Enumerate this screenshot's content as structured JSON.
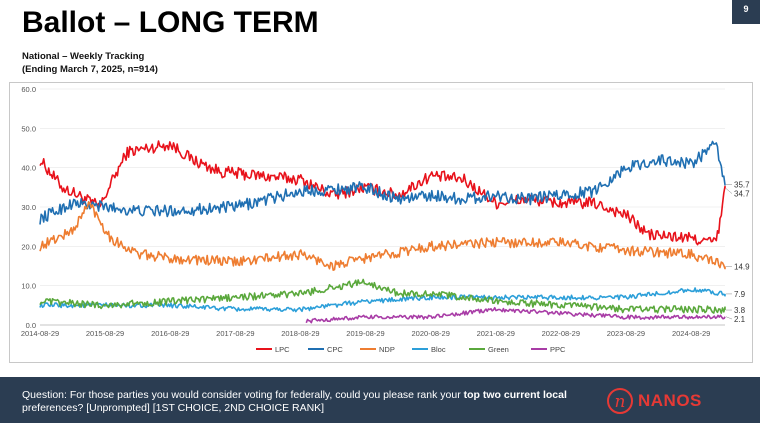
{
  "slide": {
    "title": "Ballot – LONG TERM",
    "subtitle_line1": "National – Weekly Tracking",
    "subtitle_line2": "(Ending March 7, 2025, n=914)",
    "page_number": "9"
  },
  "footer": {
    "question_part1": "Question: For those parties you would consider voting for federally, could you please rank your ",
    "question_bold": "top two current local",
    "question_part2": "preferences? [Unprompted] [1ST CHOICE, 2ND CHOICE RANK]",
    "logo_mark": "n",
    "logo_text": "NANOS"
  },
  "chart_data": {
    "type": "line",
    "x_labels": [
      "2014-08-29",
      "2015-08-29",
      "2016-08-29",
      "2017-08-29",
      "2018-08-29",
      "2019-08-29",
      "2020-08-29",
      "2021-08-29",
      "2022-08-29",
      "2023-08-29",
      "2024-08-29"
    ],
    "xlim": [
      "2014-08-29",
      "2025-03-07"
    ],
    "ylim": [
      0,
      60
    ],
    "y_ticks": [
      "0.0",
      "10.0",
      "20.0",
      "30.0",
      "40.0",
      "50.0",
      "60.0"
    ],
    "legend_position": "bottom",
    "series": [
      {
        "name": "LPC",
        "color": "#e8121b",
        "end_label": "34.7",
        "volatility": 1.5,
        "points": [
          [
            "2014-08-29",
            42
          ],
          [
            "2015-01-01",
            35
          ],
          [
            "2015-04-01",
            33
          ],
          [
            "2015-08-01",
            30
          ],
          [
            "2015-10-01",
            36
          ],
          [
            "2016-01-01",
            44
          ],
          [
            "2016-08-29",
            46
          ],
          [
            "2017-01-01",
            42
          ],
          [
            "2017-06-01",
            39
          ],
          [
            "2018-01-01",
            38
          ],
          [
            "2018-08-29",
            37
          ],
          [
            "2019-03-01",
            33
          ],
          [
            "2019-08-29",
            35
          ],
          [
            "2020-03-01",
            33
          ],
          [
            "2020-08-29",
            38
          ],
          [
            "2021-03-01",
            37
          ],
          [
            "2021-08-29",
            31
          ],
          [
            "2022-03-01",
            32
          ],
          [
            "2022-08-29",
            31
          ],
          [
            "2023-03-01",
            31
          ],
          [
            "2023-08-29",
            28
          ],
          [
            "2024-01-01",
            23
          ],
          [
            "2024-08-29",
            22
          ],
          [
            "2025-01-15",
            21
          ],
          [
            "2025-02-15",
            28
          ],
          [
            "2025-03-07",
            34.7
          ]
        ]
      },
      {
        "name": "CPC",
        "color": "#1f6fb2",
        "end_label": "35.7",
        "volatility": 1.5,
        "points": [
          [
            "2014-08-29",
            27
          ],
          [
            "2015-03-01",
            31
          ],
          [
            "2015-08-29",
            30
          ],
          [
            "2016-03-01",
            29
          ],
          [
            "2016-08-29",
            29
          ],
          [
            "2017-08-29",
            30
          ],
          [
            "2018-08-29",
            34
          ],
          [
            "2019-08-29",
            35
          ],
          [
            "2020-03-01",
            32
          ],
          [
            "2020-08-29",
            33
          ],
          [
            "2021-03-01",
            32
          ],
          [
            "2021-08-29",
            33
          ],
          [
            "2022-03-01",
            32
          ],
          [
            "2022-08-29",
            33
          ],
          [
            "2023-03-01",
            34
          ],
          [
            "2023-08-29",
            40
          ],
          [
            "2024-03-01",
            42
          ],
          [
            "2024-08-29",
            41
          ],
          [
            "2025-01-15",
            46
          ],
          [
            "2025-03-07",
            35.7
          ]
        ]
      },
      {
        "name": "NDP",
        "color": "#ee7d31",
        "end_label": "14.9",
        "volatility": 1.3,
        "points": [
          [
            "2014-08-29",
            20
          ],
          [
            "2015-03-01",
            24
          ],
          [
            "2015-06-01",
            31
          ],
          [
            "2015-10-01",
            22
          ],
          [
            "2016-03-01",
            18
          ],
          [
            "2016-08-29",
            17
          ],
          [
            "2017-08-29",
            16
          ],
          [
            "2018-08-29",
            18
          ],
          [
            "2019-03-01",
            15
          ],
          [
            "2019-08-29",
            17
          ],
          [
            "2020-08-29",
            20
          ],
          [
            "2021-08-29",
            21
          ],
          [
            "2022-08-29",
            21
          ],
          [
            "2023-08-29",
            19
          ],
          [
            "2024-08-29",
            18
          ],
          [
            "2025-03-07",
            14.9
          ]
        ]
      },
      {
        "name": "Bloc",
        "color": "#2c9fd9",
        "end_label": "7.9",
        "volatility": 0.6,
        "points": [
          [
            "2014-08-29",
            5
          ],
          [
            "2015-08-29",
            5
          ],
          [
            "2016-08-29",
            5
          ],
          [
            "2017-08-29",
            4
          ],
          [
            "2018-08-29",
            4
          ],
          [
            "2019-08-29",
            6
          ],
          [
            "2020-08-29",
            7
          ],
          [
            "2021-08-29",
            7
          ],
          [
            "2022-08-29",
            7
          ],
          [
            "2023-08-29",
            7
          ],
          [
            "2024-08-29",
            9
          ],
          [
            "2025-03-07",
            7.9
          ]
        ]
      },
      {
        "name": "Green",
        "color": "#5aa83c",
        "end_label": "3.8",
        "volatility": 0.9,
        "points": [
          [
            "2014-08-29",
            6
          ],
          [
            "2015-08-29",
            5
          ],
          [
            "2016-08-29",
            6
          ],
          [
            "2017-08-29",
            7
          ],
          [
            "2018-08-29",
            8
          ],
          [
            "2019-08-29",
            11
          ],
          [
            "2020-03-01",
            8
          ],
          [
            "2020-08-29",
            8
          ],
          [
            "2021-08-29",
            6
          ],
          [
            "2022-08-29",
            5
          ],
          [
            "2023-08-29",
            4
          ],
          [
            "2024-08-29",
            4
          ],
          [
            "2025-03-07",
            3.8
          ]
        ]
      },
      {
        "name": "PPC",
        "color": "#a83ca6",
        "end_label": "2.1",
        "volatility": 0.5,
        "points": [
          [
            "2018-10-01",
            1
          ],
          [
            "2019-08-29",
            2
          ],
          [
            "2020-08-29",
            2
          ],
          [
            "2021-08-29",
            4
          ],
          [
            "2022-08-29",
            3
          ],
          [
            "2023-08-29",
            2
          ],
          [
            "2024-08-29",
            2
          ],
          [
            "2025-03-07",
            2.1
          ]
        ]
      }
    ]
  }
}
